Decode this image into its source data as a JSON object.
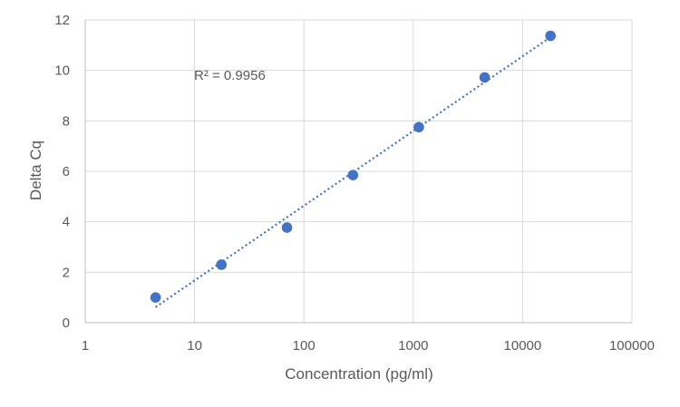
{
  "chart_data": {
    "type": "scatter",
    "x_scale": "log",
    "xlabel": "Concentration (pg/ml)",
    "ylabel": "Delta Cq",
    "xlim": [
      1,
      100000
    ],
    "ylim": [
      0,
      12
    ],
    "x_ticks": [
      "1",
      "10",
      "100",
      "1000",
      "10000",
      "100000"
    ],
    "y_ticks": [
      "0",
      "2",
      "4",
      "6",
      "8",
      "10",
      "12"
    ],
    "grid": true,
    "legend": "none",
    "series": [
      {
        "color": "#4472c4",
        "points": [
          {
            "x": 4.4,
            "y": 1.0
          },
          {
            "x": 17.6,
            "y": 2.3
          },
          {
            "x": 70,
            "y": 3.77
          },
          {
            "x": 281,
            "y": 5.85
          },
          {
            "x": 1125,
            "y": 7.75
          },
          {
            "x": 4500,
            "y": 9.72
          },
          {
            "x": 18000,
            "y": 11.37
          }
        ]
      }
    ],
    "trendline": {
      "type": "logarithmic",
      "style": "dotted",
      "color": "#4472c4",
      "x_range": [
        4.4,
        18000
      ]
    },
    "annotations": [
      {
        "text": "R² = 0.9956"
      }
    ]
  }
}
